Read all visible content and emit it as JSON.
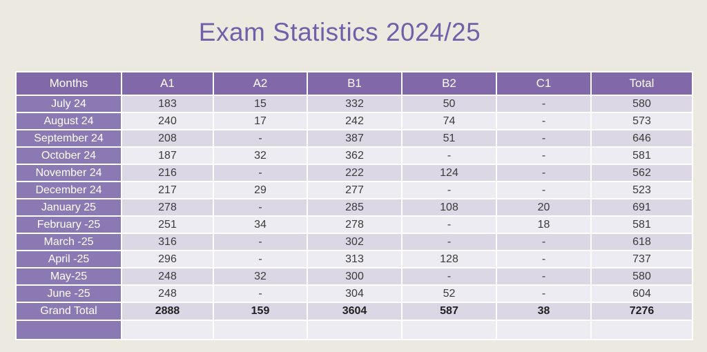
{
  "title": "Exam Statistics 2024/25",
  "colors": {
    "page_bg": "#ECEAE0",
    "title_text": "#6F61A9",
    "header_bg": "#8168A8",
    "row_header_bg": "#8A79B2",
    "band_dark": "#DCD7E5",
    "band_light": "#EEECF3",
    "grid_line": "#FFFFFF",
    "cell_text": "#3A3A3A",
    "header_text": "#FFFFFF",
    "total_text": "#1F1F1F"
  },
  "chart_data": {
    "type": "table",
    "title": "Exam Statistics 2024/25",
    "columns": [
      "Months",
      "A1",
      "A2",
      "B1",
      "B2",
      "C1",
      "Total"
    ],
    "rows": [
      [
        "July 24",
        "183",
        "15",
        "332",
        "50",
        "-",
        "580"
      ],
      [
        "August 24",
        "240",
        "17",
        "242",
        "74",
        "-",
        "573"
      ],
      [
        "September 24",
        "208",
        "-",
        "387",
        "51",
        "-",
        "646"
      ],
      [
        "October 24",
        "187",
        "32",
        "362",
        "-",
        "-",
        "581"
      ],
      [
        "November 24",
        "216",
        "-",
        "222",
        "124",
        "-",
        "562"
      ],
      [
        "December 24",
        "217",
        "29",
        "277",
        "-",
        "-",
        "523"
      ],
      [
        "January 25",
        "278",
        "-",
        "285",
        "108",
        "20",
        "691"
      ],
      [
        "February -25",
        "251",
        "34",
        "278",
        "-",
        "18",
        "581"
      ],
      [
        "March -25",
        "316",
        "-",
        "302",
        "-",
        "-",
        "618"
      ],
      [
        "April -25",
        "296",
        "-",
        "313",
        "128",
        "-",
        "737"
      ],
      [
        "May-25",
        "248",
        "32",
        "300",
        "-",
        "-",
        "580"
      ],
      [
        "June -25",
        "248",
        "-",
        "304",
        "52",
        "-",
        "604"
      ]
    ],
    "grand_total_row": [
      "Grand Total",
      "2888",
      "159",
      "3604",
      "587",
      "38",
      "7276"
    ],
    "empty_row": [
      "",
      "",
      "",
      "",
      "",
      "",
      ""
    ]
  }
}
